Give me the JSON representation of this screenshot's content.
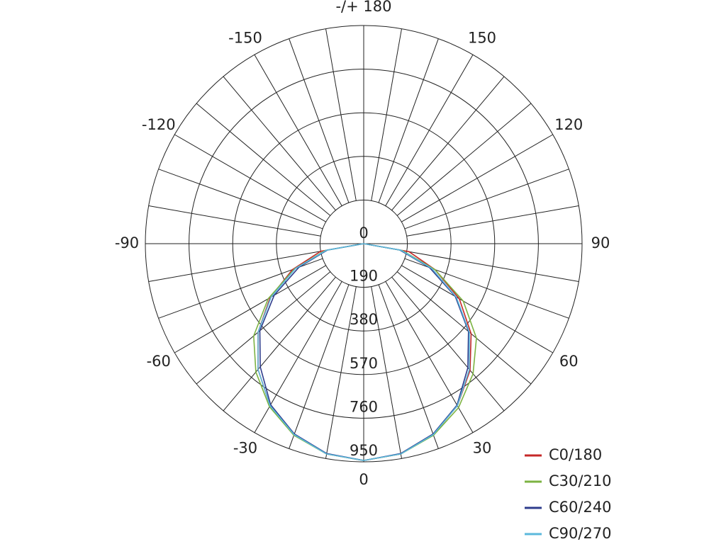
{
  "chart_data": {
    "type": "polar",
    "x": [
      -90,
      -80,
      -70,
      -60,
      -50,
      -40,
      -30,
      -20,
      -10,
      0,
      10,
      20,
      30,
      40,
      50,
      60,
      70,
      80,
      90
    ],
    "rlim": [
      0,
      950
    ],
    "rticks": [
      0,
      190,
      380,
      570,
      760,
      950
    ],
    "angle_ticks": [
      -150,
      -120,
      -90,
      -60,
      -30,
      0,
      30,
      60,
      90,
      120,
      150,
      {
        "value": 180,
        "label": "-/+ 180"
      }
    ],
    "series": [
      {
        "name": "C0/180",
        "color": "#c62828",
        "values": [
          0,
          190,
          330,
          470,
          600,
          715,
          815,
          885,
          930,
          944,
          930,
          885,
          815,
          720,
          610,
          480,
          330,
          200,
          0
        ]
      },
      {
        "name": "C30/210",
        "color": "#7cb342",
        "values": [
          0,
          170,
          320,
          480,
          625,
          730,
          820,
          888,
          930,
          944,
          930,
          888,
          825,
          740,
          640,
          500,
          330,
          170,
          0
        ]
      },
      {
        "name": "C60/240",
        "color": "#2e3c8c",
        "values": [
          0,
          160,
          300,
          450,
          590,
          700,
          810,
          882,
          928,
          944,
          928,
          882,
          812,
          705,
          595,
          460,
          305,
          160,
          0
        ]
      },
      {
        "name": "C90/270",
        "color": "#5bb8dc",
        "values": [
          0,
          165,
          315,
          465,
          600,
          715,
          815,
          885,
          930,
          944,
          930,
          885,
          815,
          715,
          600,
          465,
          315,
          165,
          0
        ]
      }
    ],
    "legend": "lower right"
  }
}
